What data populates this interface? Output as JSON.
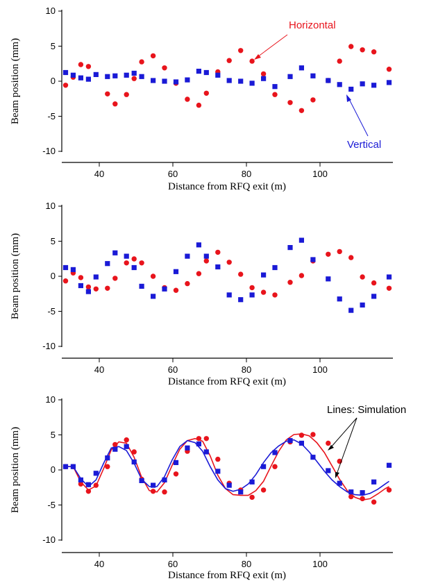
{
  "colors": {
    "horizontal": "#e8141c",
    "vertical": "#1a1ad6",
    "axis": "#000000"
  },
  "chart_data": [
    {
      "type": "scatter",
      "title": "",
      "xlabel": "Distance from RFQ exit (m)",
      "ylabel": "Beam position (mm)",
      "xlim": [
        31,
        118
      ],
      "ylim": [
        -11,
        10
      ],
      "xticks": [
        40,
        60,
        80,
        100
      ],
      "yticks": [
        -10,
        -5,
        0,
        5,
        10
      ],
      "grid": false,
      "annotations": [
        {
          "text": "Horizontal",
          "color": "red",
          "target": "horizontal"
        },
        {
          "text": "Vertical",
          "color": "blue",
          "target": "vertical"
        }
      ],
      "series": [
        {
          "name": "Horizontal",
          "marker": "circle",
          "color": "red",
          "x": [
            32,
            34,
            36,
            38,
            43,
            45,
            48,
            50,
            52,
            55,
            58,
            61,
            64,
            67,
            69,
            72,
            75,
            78,
            81,
            84,
            87,
            91,
            94,
            97,
            101,
            104,
            107,
            110,
            113,
            117
          ],
          "y": [
            -1.1,
            0.1,
            2.0,
            1.7,
            -2.4,
            -3.9,
            -2.5,
            -0.1,
            2.4,
            3.3,
            1.5,
            -0.8,
            -3.2,
            -4.1,
            -2.3,
            0.9,
            2.6,
            4.1,
            2.5,
            0.6,
            -2.5,
            -3.7,
            -4.9,
            -3.3,
            -0.4,
            2.5,
            4.7,
            4.2,
            3.9,
            1.3
          ]
        },
        {
          "name": "Vertical",
          "marker": "square",
          "color": "blue",
          "x": [
            32,
            34,
            36,
            38,
            40,
            43,
            45,
            48,
            50,
            52,
            55,
            58,
            61,
            64,
            67,
            69,
            72,
            75,
            78,
            81,
            84,
            87,
            91,
            94,
            97,
            101,
            104,
            107,
            110,
            113,
            117
          ],
          "y": [
            0.8,
            0.4,
            0.0,
            -0.2,
            0.5,
            0.2,
            0.3,
            0.4,
            0.7,
            0.2,
            -0.4,
            -0.5,
            -0.6,
            -0.3,
            1.0,
            0.8,
            0.4,
            -0.4,
            -0.5,
            -0.8,
            -0.1,
            -1.3,
            0.2,
            1.5,
            0.3,
            -0.4,
            -1.0,
            -1.7,
            -0.9,
            -1.1,
            -0.7
          ]
        }
      ]
    },
    {
      "type": "scatter",
      "title": "",
      "xlabel": "Distance from RFQ exit (m)",
      "ylabel": "Beam position (mm)",
      "xlim": [
        31,
        118
      ],
      "ylim": [
        -11,
        10
      ],
      "xticks": [
        40,
        60,
        80,
        100
      ],
      "yticks": [
        -10,
        -5,
        0,
        5,
        10
      ],
      "grid": false,
      "series": [
        {
          "name": "Horizontal",
          "marker": "circle",
          "color": "red",
          "x": [
            32,
            34,
            36,
            38,
            40,
            43,
            45,
            48,
            50,
            52,
            55,
            58,
            61,
            64,
            67,
            69,
            72,
            75,
            78,
            81,
            84,
            87,
            91,
            94,
            97,
            101,
            104,
            107,
            110,
            113,
            117
          ],
          "y": [
            -1.2,
            0.0,
            -0.7,
            -2.1,
            -2.4,
            -2.3,
            -0.8,
            1.5,
            2.1,
            1.5,
            -0.5,
            -2.2,
            -2.6,
            -1.6,
            -0.1,
            1.8,
            3.1,
            1.6,
            -0.2,
            -2.2,
            -2.9,
            -3.3,
            -1.4,
            -0.4,
            1.8,
            2.8,
            3.2,
            2.3,
            -0.6,
            -1.5,
            -2.3
          ]
        },
        {
          "name": "Vertical",
          "marker": "square",
          "color": "blue",
          "x": [
            32,
            34,
            36,
            38,
            40,
            43,
            45,
            48,
            50,
            52,
            55,
            58,
            61,
            64,
            67,
            69,
            72,
            75,
            78,
            81,
            84,
            87,
            91,
            94,
            97,
            101,
            104,
            107,
            110,
            113,
            117
          ],
          "y": [
            0.8,
            0.5,
            -1.9,
            -2.8,
            -0.6,
            1.4,
            3.0,
            2.5,
            0.8,
            -2.0,
            -3.5,
            -2.4,
            0.2,
            2.5,
            4.2,
            2.5,
            0.9,
            -3.3,
            -4.0,
            -3.3,
            -0.3,
            0.8,
            3.8,
            4.9,
            2.0,
            -0.9,
            -3.9,
            -5.6,
            -4.8,
            -3.5,
            -0.6
          ]
        }
      ]
    },
    {
      "type": "scatter",
      "title": "",
      "xlabel": "Distance from RFQ exit (m)",
      "ylabel": "Beam position (mm)",
      "xlim": [
        31,
        118
      ],
      "ylim": [
        -11,
        10
      ],
      "xticks": [
        40,
        60,
        80,
        100
      ],
      "yticks": [
        -10,
        -5,
        0,
        5,
        10
      ],
      "grid": false,
      "annotations": [
        {
          "text": "Lines: Simulation",
          "color": "black",
          "target": "simulation lines"
        }
      ],
      "series": [
        {
          "name": "Horizontal",
          "marker": "circle",
          "color": "red",
          "x": [
            32,
            34,
            36,
            38,
            40,
            43,
            45,
            48,
            50,
            52,
            55,
            58,
            61,
            64,
            67,
            69,
            72,
            75,
            78,
            81,
            84,
            87,
            91,
            94,
            97,
            101,
            104,
            107,
            110,
            113,
            117
          ],
          "y": [
            0.0,
            0.0,
            -2.6,
            -3.7,
            -2.8,
            0.0,
            3.3,
            4.0,
            2.2,
            -1.9,
            -3.7,
            -3.8,
            -1.1,
            2.3,
            4.2,
            4.2,
            1.1,
            -2.5,
            -3.5,
            -4.6,
            -3.5,
            0.0,
            3.7,
            4.7,
            4.8,
            3.5,
            0.8,
            -4.5,
            -4.8,
            -5.3,
            -3.5
          ]
        },
        {
          "name": "Vertical",
          "marker": "square",
          "color": "blue",
          "x": [
            32,
            34,
            36,
            38,
            40,
            43,
            45,
            48,
            50,
            52,
            55,
            58,
            61,
            64,
            67,
            69,
            72,
            75,
            78,
            81,
            84,
            87,
            91,
            94,
            97,
            101,
            104,
            107,
            110,
            113,
            117
          ],
          "y": [
            0.0,
            0.0,
            -2.0,
            -2.7,
            -1.0,
            1.3,
            2.6,
            3.0,
            0.7,
            -2.1,
            -2.8,
            -2.0,
            0.6,
            2.8,
            3.4,
            2.2,
            -0.7,
            -2.8,
            -3.8,
            -2.3,
            0.0,
            2.1,
            3.9,
            3.5,
            1.4,
            -0.6,
            -2.5,
            -3.8,
            -3.9,
            -2.3,
            0.2
          ]
        },
        {
          "name": "",
          "kind": "line",
          "color": "red",
          "x": [
            32,
            34,
            36,
            38,
            40,
            42,
            44,
            46,
            48,
            50,
            52,
            54,
            56,
            58,
            60,
            62,
            64,
            66,
            68,
            70,
            72,
            74,
            76,
            78,
            80,
            82,
            84,
            86,
            88,
            90,
            92,
            94,
            96,
            98,
            100,
            102,
            104,
            106,
            108,
            110,
            112,
            114,
            116,
            117
          ],
          "y": [
            0.0,
            0.0,
            -2.3,
            -3.5,
            -2.9,
            -0.3,
            2.5,
            3.7,
            3.5,
            1.4,
            -1.6,
            -3.6,
            -3.8,
            -2.4,
            0.2,
            2.6,
            3.9,
            4.2,
            3.8,
            1.6,
            -1.3,
            -3.3,
            -4.2,
            -4.3,
            -4.3,
            -3.6,
            -2.2,
            0.1,
            2.3,
            4.0,
            4.8,
            4.9,
            4.6,
            3.6,
            2.1,
            0.1,
            -1.9,
            -3.6,
            -4.6,
            -5.0,
            -4.8,
            -4.1,
            -3.3,
            -3.0
          ]
        },
        {
          "name": "",
          "kind": "line",
          "color": "blue",
          "x": [
            32,
            34,
            36,
            38,
            40,
            42,
            44,
            46,
            48,
            50,
            52,
            54,
            56,
            58,
            60,
            62,
            64,
            66,
            68,
            70,
            72,
            74,
            76,
            78,
            80,
            82,
            84,
            86,
            88,
            90,
            92,
            94,
            96,
            98,
            100,
            102,
            104,
            106,
            108,
            110,
            112,
            114,
            116,
            117
          ],
          "y": [
            0.0,
            0.0,
            -1.8,
            -3.0,
            -2.0,
            0.5,
            2.8,
            3.0,
            2.4,
            0.5,
            -1.9,
            -3.0,
            -3.0,
            -1.5,
            1.0,
            3.0,
            3.9,
            3.6,
            2.3,
            0.0,
            -2.0,
            -3.3,
            -3.7,
            -3.4,
            -2.6,
            -1.2,
            0.6,
            2.1,
            3.1,
            3.8,
            4.0,
            3.4,
            2.2,
            0.8,
            -0.7,
            -2.0,
            -3.0,
            -3.8,
            -4.2,
            -4.3,
            -4.0,
            -3.4,
            -2.6,
            -2.2
          ]
        }
      ]
    }
  ]
}
